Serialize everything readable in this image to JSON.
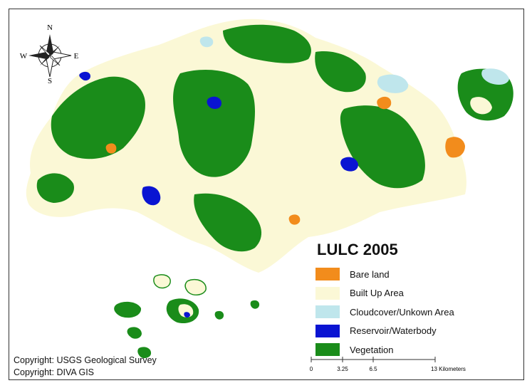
{
  "legend": {
    "title": "LULC 2005",
    "items": [
      {
        "label": "Bare land",
        "color": "#f28c1c"
      },
      {
        "label": "Built Up Area",
        "color": "#fbf8d6"
      },
      {
        "label": "Cloudcover/Unkown Area",
        "color": "#bfe6ec"
      },
      {
        "label": "Reservoir/Waterbody",
        "color": "#0a14d2"
      },
      {
        "label": "Vegetation",
        "color": "#1a8c1a"
      }
    ]
  },
  "compass": {
    "n": "N",
    "s": "S",
    "e": "E",
    "w": "W"
  },
  "scale_bar": {
    "ticks": [
      "0",
      "3.25",
      "6.5",
      "13 Kilometers"
    ]
  },
  "credits": {
    "line1": "Copyright: USGS Geological Survey",
    "line2": "Copyright: DIVA GIS"
  },
  "colors": {
    "builtup": "#fbf8d6",
    "vegetation": "#1a8c1a",
    "water": "#0a14d2",
    "bare": "#f28c1c",
    "cloud": "#bfe6ec"
  }
}
